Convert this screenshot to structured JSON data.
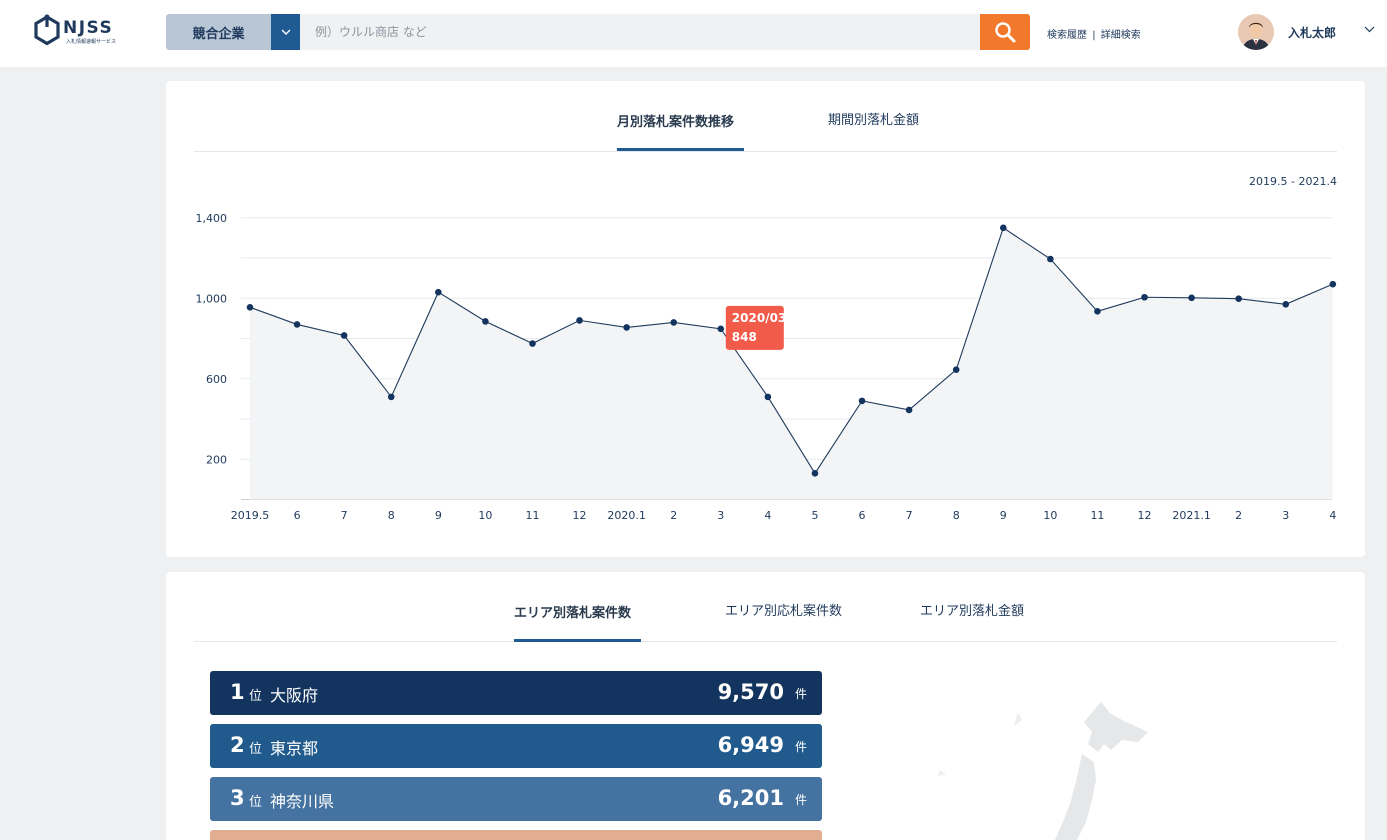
{
  "header": {
    "logo_text": "NJSS",
    "logo_subtext": "入札情報速報サービス",
    "search_category": "競合企業",
    "search_placeholder": "例）ウルル商店 など",
    "links": {
      "history": "検索履歴",
      "separator": "|",
      "advanced": "詳細検索"
    },
    "user_name": "入札太郎"
  },
  "chart_card": {
    "tabs": [
      {
        "label": "月別落札案件数推移",
        "active": true
      },
      {
        "label": "期間別落札金額",
        "active": false
      }
    ],
    "range_label": "2019.5 -  2021.4"
  },
  "chart_data": {
    "type": "area",
    "title": "",
    "xlabel": "",
    "ylabel": "",
    "categories": [
      "2019.5",
      "6",
      "7",
      "8",
      "9",
      "10",
      "11",
      "12",
      "2020.1",
      "2",
      "3",
      "4",
      "5",
      "6",
      "7",
      "8",
      "9",
      "10",
      "11",
      "12",
      "2021.1",
      "2",
      "3",
      "4"
    ],
    "values": [
      955,
      870,
      815,
      510,
      1030,
      885,
      775,
      890,
      855,
      880,
      848,
      510,
      130,
      490,
      445,
      645,
      1350,
      1195,
      935,
      1005,
      1002,
      998,
      970,
      1070
    ],
    "yticks": [
      200,
      600,
      1000,
      1400
    ],
    "ytick_labels": [
      "200",
      "600",
      "1,000",
      "1,400"
    ],
    "ylim": [
      0,
      1400
    ],
    "grid": true,
    "tooltip": {
      "index": 10,
      "label": "2020/03",
      "value": "848",
      "color": "#f25a4a"
    },
    "line_color": "#1f3a5c",
    "fill_color": "#f3f4f5"
  },
  "area_card": {
    "tabs": [
      {
        "label": "エリア別落札案件数",
        "active": true
      },
      {
        "label": "エリア別応札案件数",
        "active": false
      },
      {
        "label": "エリア別落札金額",
        "active": false
      }
    ],
    "ranking": [
      {
        "rank": "1",
        "suffix": "位",
        "prefecture": "大阪府",
        "count": "9,570",
        "unit": "件",
        "color": "#12345e"
      },
      {
        "rank": "2",
        "suffix": "位",
        "prefecture": "東京都",
        "count": "6,949",
        "unit": "件",
        "color": "#215b8d"
      },
      {
        "rank": "3",
        "suffix": "位",
        "prefecture": "神奈川県",
        "count": "6,201",
        "unit": "件",
        "color": "#4573a1"
      },
      {
        "color": "#e2ad91"
      }
    ]
  },
  "colors": {
    "accent": "#1f5a93",
    "search_button": "#f2792b",
    "background": "#eef0f2"
  }
}
